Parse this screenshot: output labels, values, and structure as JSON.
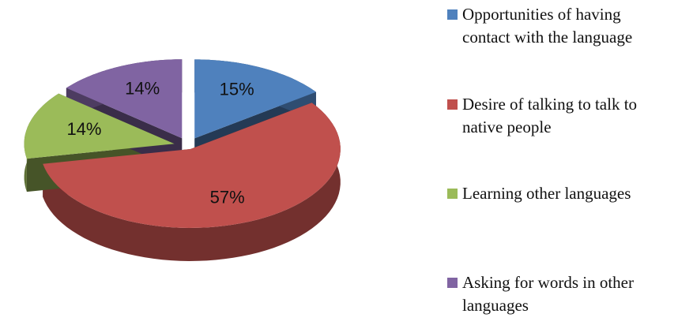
{
  "chart_data": {
    "type": "pie",
    "categories": [
      "Opportunities of having contact with the language",
      "Desire of talking to talk to native people",
      "Learning other languages",
      "Asking for words in other languages"
    ],
    "values": [
      15,
      57,
      14,
      14
    ],
    "value_labels": [
      "15%",
      "57%",
      "14%",
      "14%"
    ],
    "colors": [
      "#4f81bd",
      "#c0504d",
      "#9bbb59",
      "#8064a2"
    ],
    "legend": "right"
  }
}
